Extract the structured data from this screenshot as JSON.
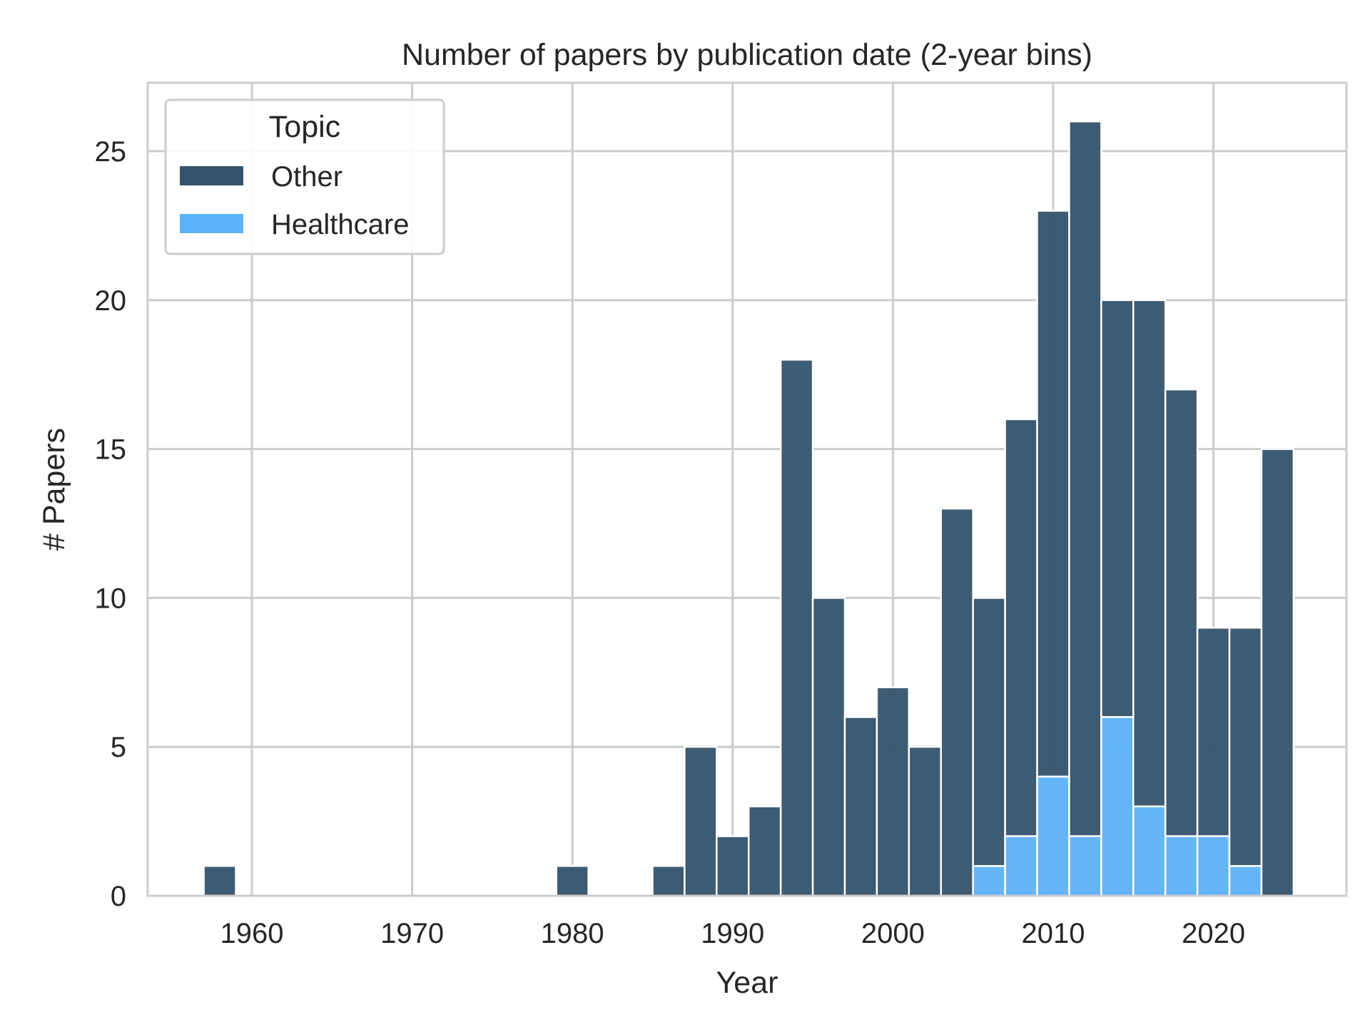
{
  "chart_data": {
    "type": "bar",
    "stacked": true,
    "title": "Number of papers by publication date (2-year bins)",
    "xlabel": "Year",
    "ylabel": "# Papers",
    "xlim": [
      1953.5,
      2028.3
    ],
    "ylim": [
      0,
      27.3
    ],
    "xticks": [
      1960,
      1970,
      1980,
      1990,
      2000,
      2010,
      2020
    ],
    "yticks": [
      0,
      5,
      10,
      15,
      20,
      25
    ],
    "grid": true,
    "legend": {
      "title": "Topic",
      "placement": "top-left",
      "entries": [
        "Other",
        "Healthcare"
      ]
    },
    "colors": {
      "Other": "#34526d",
      "Healthcare": "#5cb2f9"
    },
    "bin_width": 2,
    "bins": [
      {
        "x0": 1957.0,
        "x1": 1959.0,
        "healthcare": 0,
        "total": 1
      },
      {
        "x0": 1979.0,
        "x1": 1981.0,
        "healthcare": 0,
        "total": 1
      },
      {
        "x0": 1985.0,
        "x1": 1987.0,
        "healthcare": 0,
        "total": 1
      },
      {
        "x0": 1987.0,
        "x1": 1989.0,
        "healthcare": 0,
        "total": 5
      },
      {
        "x0": 1989.0,
        "x1": 1991.0,
        "healthcare": 0,
        "total": 2
      },
      {
        "x0": 1991.0,
        "x1": 1993.0,
        "healthcare": 0,
        "total": 3
      },
      {
        "x0": 1993.0,
        "x1": 1995.0,
        "healthcare": 0,
        "total": 18
      },
      {
        "x0": 1995.0,
        "x1": 1997.0,
        "healthcare": 0,
        "total": 10
      },
      {
        "x0": 1997.0,
        "x1": 1999.0,
        "healthcare": 0,
        "total": 6
      },
      {
        "x0": 1999.0,
        "x1": 2001.0,
        "healthcare": 0,
        "total": 7
      },
      {
        "x0": 2001.0,
        "x1": 2003.0,
        "healthcare": 0,
        "total": 5
      },
      {
        "x0": 2003.0,
        "x1": 2005.0,
        "healthcare": 0,
        "total": 13
      },
      {
        "x0": 2005.0,
        "x1": 2007.0,
        "healthcare": 1,
        "total": 10
      },
      {
        "x0": 2007.0,
        "x1": 2009.0,
        "healthcare": 2,
        "total": 16
      },
      {
        "x0": 2009.0,
        "x1": 2011.0,
        "healthcare": 4,
        "total": 23
      },
      {
        "x0": 2011.0,
        "x1": 2013.0,
        "healthcare": 2,
        "total": 26
      },
      {
        "x0": 2013.0,
        "x1": 2015.0,
        "healthcare": 6,
        "total": 20
      },
      {
        "x0": 2015.0,
        "x1": 2017.0,
        "healthcare": 3,
        "total": 20
      },
      {
        "x0": 2017.0,
        "x1": 2019.0,
        "healthcare": 2,
        "total": 17
      },
      {
        "x0": 2019.0,
        "x1": 2021.0,
        "healthcare": 2,
        "total": 9
      },
      {
        "x0": 2021.0,
        "x1": 2023.0,
        "healthcare": 1,
        "total": 9
      },
      {
        "x0": 2023.0,
        "x1": 2025.0,
        "healthcare": 0,
        "total": 15
      }
    ]
  }
}
